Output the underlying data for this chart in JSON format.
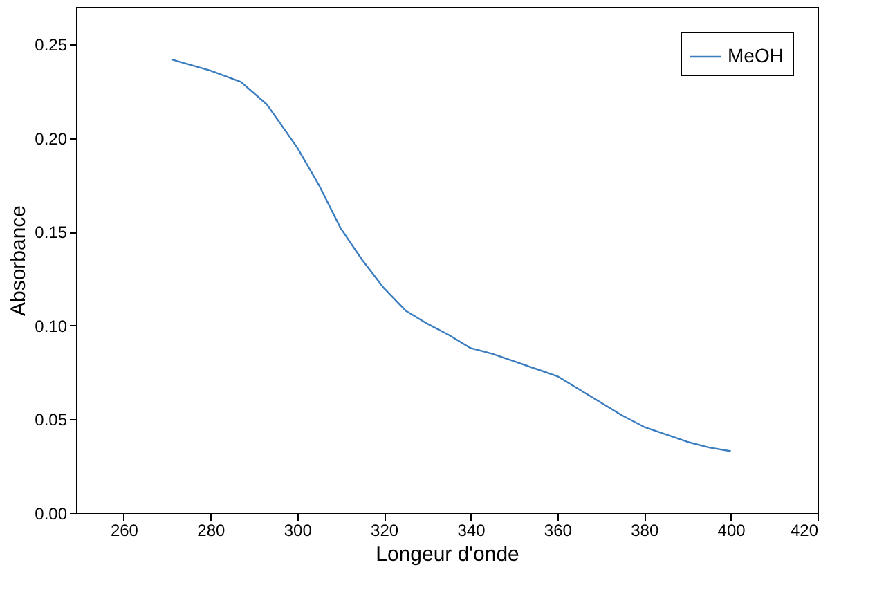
{
  "chart_data": {
    "type": "line",
    "xlabel": "Longeur d'onde",
    "ylabel": "Absorbance",
    "xlim": [
      249,
      420
    ],
    "xticks": [
      260,
      280,
      300,
      320,
      340,
      360,
      380,
      400,
      420
    ],
    "ylim": [
      0,
      0.27
    ],
    "yticks": [
      {
        "value": 0,
        "label": "0.00"
      },
      {
        "value": 0.05,
        "label": "0.05"
      },
      {
        "value": 0.1,
        "label": "0.10"
      },
      {
        "value": 0.15,
        "label": "0.15"
      },
      {
        "value": 0.2,
        "label": "0.20"
      },
      {
        "value": 0.25,
        "label": "0.25"
      }
    ],
    "grid": false,
    "legend": "top right",
    "marker": "none",
    "line_style": "solid",
    "x": [
      271,
      280,
      287,
      293,
      300,
      305,
      310,
      315,
      320,
      325,
      330,
      335,
      340,
      345,
      350,
      355,
      360,
      365,
      370,
      375,
      380,
      385,
      390,
      395,
      400
    ],
    "series": [
      {
        "name": "MeOH",
        "color": "#3a7cc0",
        "values": [
          0.242,
          0.236,
          0.23,
          0.218,
          0.195,
          0.175,
          0.152,
          0.135,
          0.12,
          0.108,
          0.101,
          0.095,
          0.088,
          0.085,
          0.081,
          0.077,
          0.073,
          0.066,
          0.059,
          0.052,
          0.046,
          0.042,
          0.038,
          0.035,
          0.033
        ]
      }
    ]
  }
}
